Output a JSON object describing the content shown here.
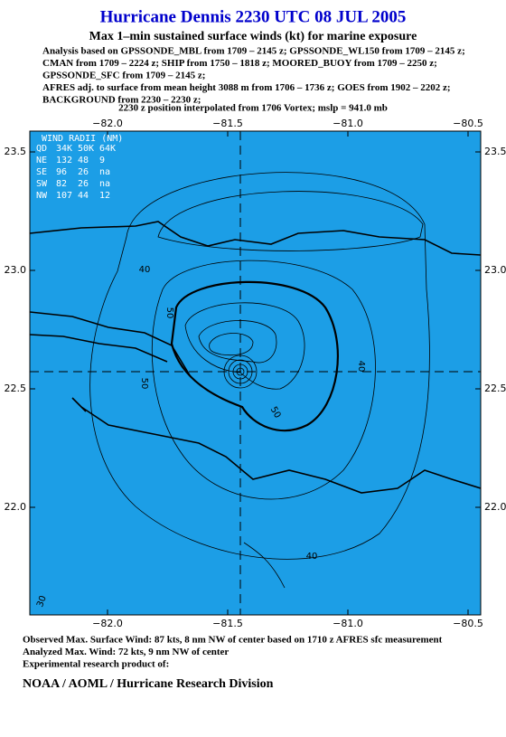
{
  "header": {
    "title": "Hurricane Dennis 2230 UTC 08 JUL 2005",
    "subtitle": "Max 1–min sustained surface winds (kt) for marine exposure",
    "analysis_lines": [
      "Analysis based on  GPSSONDE_MBL from 1709 – 2145 z;  GPSSONDE_WL150 from 1709 – 2145 z;",
      "CMAN from 1709 – 2224 z;  SHIP from 1750 – 1818 z;  MOORED_BUOY from 1709 – 2250 z;",
      "GPSSONDE_SFC from 1709 – 2145 z;",
      "AFRES adj. to surface from mean height 3088 m from 1706 – 1736 z;  GOES from 1902 – 2202 z;",
      "BACKGROUND from 2230 – 2230 z;"
    ],
    "position_line": "2230 z position interpolated from 1706 Vortex; mslp = 941.0 mb"
  },
  "map": {
    "xticks": [
      {
        "value": -82.0,
        "label": "−82.0"
      },
      {
        "value": -81.5,
        "label": "−81.5"
      },
      {
        "value": -81.0,
        "label": "−81.0"
      },
      {
        "value": -80.5,
        "label": "−80.5"
      }
    ],
    "yticks": [
      {
        "value": 23.5,
        "label": "23.5"
      },
      {
        "value": 23.0,
        "label": "23.0"
      },
      {
        "value": 22.5,
        "label": "22.5"
      },
      {
        "value": 22.0,
        "label": "22.0"
      }
    ],
    "wind_radii": {
      "title": "WIND RADII (NM)",
      "columns": [
        "QD",
        "34K",
        "50K",
        "64K"
      ],
      "rows": [
        [
          "NE",
          "132",
          "48",
          "9"
        ],
        [
          "SE",
          "96",
          "26",
          "na"
        ],
        [
          "SW",
          "82",
          "26",
          "na"
        ],
        [
          "NW",
          "107",
          "44",
          "12"
        ]
      ]
    },
    "contour_labels": [
      40,
      50,
      50,
      40,
      50,
      40,
      30
    ]
  },
  "footer": {
    "notes": [
      "Observed Max. Surface Wind: 87 kts, 8 nm NW of center based on 1710 z AFRES sfc measurement",
      "Analyzed Max. Wind: 72 kts, 9 nm NW of center",
      "Experimental research product of:"
    ],
    "org": "NOAA / AOML / Hurricane Research Division"
  }
}
